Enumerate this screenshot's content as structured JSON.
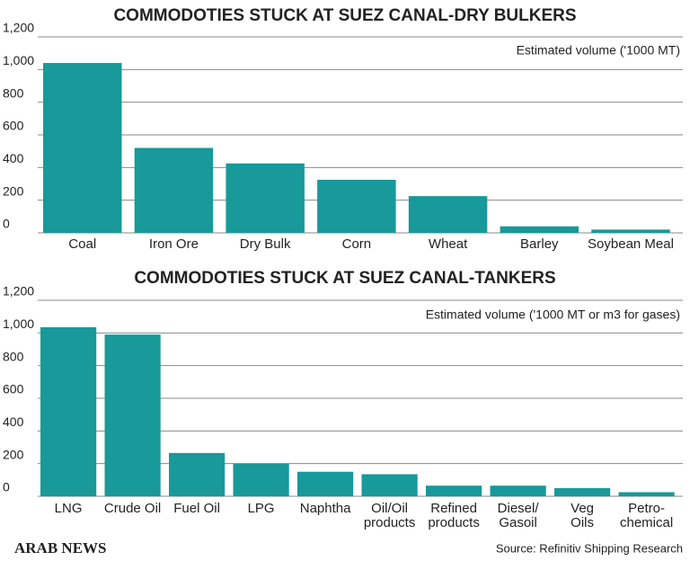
{
  "chart_data": [
    {
      "type": "bar",
      "title": "COMMODOTIES STUCK AT SUEZ CANAL-DRY BULKERS",
      "note": "Estimated volume ('1000 MT)",
      "categories": [
        "Coal",
        "Iron Ore",
        "Dry Bulk",
        "Corn",
        "Wheat",
        "Barley",
        "Soybean Meal"
      ],
      "values": [
        1040,
        520,
        425,
        325,
        225,
        40,
        20
      ],
      "color": "#18999a",
      "ylim": [
        0,
        1200
      ],
      "yticks": [
        0,
        200,
        400,
        600,
        800,
        {
          "value": 1000,
          "label": "1,000"
        },
        {
          "value": 1200,
          "label": "1,200"
        }
      ],
      "grid": true
    },
    {
      "type": "bar",
      "title": "COMMODOTIES STUCK AT SUEZ CANAL-TANKERS",
      "note": "Estimated volume ('1000 MT or m3 for gases)",
      "categories": [
        "LNG",
        "Crude Oil",
        "Fuel Oil",
        "LPG",
        "Naphtha",
        "Oil/Oil\nproducts",
        "Refined\nproducts",
        "Diesel/\nGasoil",
        "Veg\nOils",
        "Petro-\nchemical"
      ],
      "values": [
        1035,
        990,
        265,
        200,
        150,
        135,
        65,
        65,
        50,
        25
      ],
      "color": "#18999a",
      "ylim": [
        0,
        1200
      ],
      "yticks": [
        0,
        200,
        400,
        600,
        800,
        {
          "value": 1000,
          "label": "1,000"
        },
        {
          "value": 1200,
          "label": "1,200"
        }
      ],
      "grid": true
    }
  ],
  "footer": {
    "brand": "ARAB NEWS",
    "source": "Source: Refinitiv Shipping Research"
  }
}
